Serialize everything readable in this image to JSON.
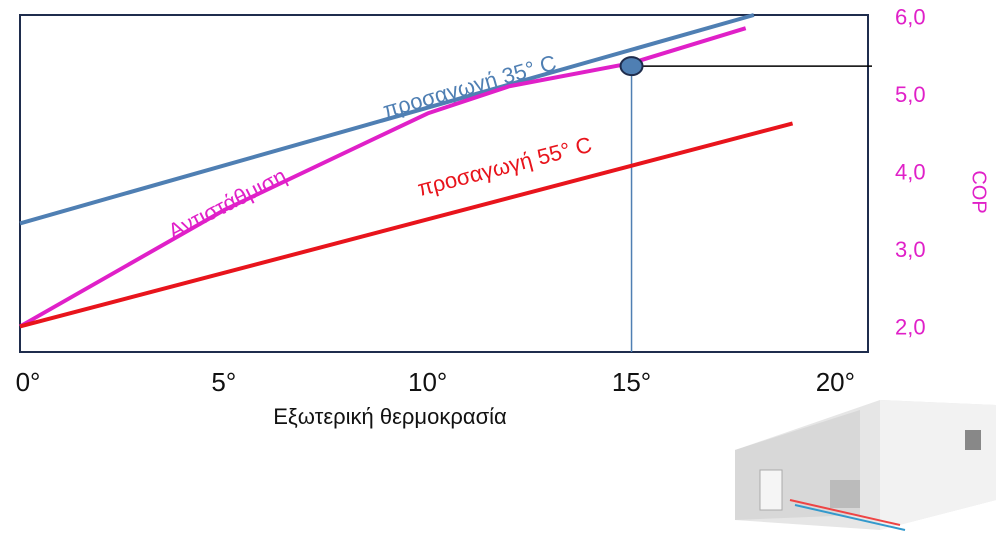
{
  "chart_data": {
    "type": "line",
    "x_label": "Εξωτερική θερμοκρασία",
    "y_label": "COP",
    "xlim": [
      0,
      20.8
    ],
    "ylim": [
      1.7,
      6.05
    ],
    "xticks": [
      {
        "value": 0,
        "label": "0°"
      },
      {
        "value": 5,
        "label": "5°"
      },
      {
        "value": 10,
        "label": "10°"
      },
      {
        "value": 15,
        "label": "15°"
      },
      {
        "value": 20,
        "label": "20°"
      }
    ],
    "yticks": [
      {
        "value": 2,
        "label": "2,0"
      },
      {
        "value": 3,
        "label": "3,0"
      },
      {
        "value": 4,
        "label": "4,0"
      },
      {
        "value": 5,
        "label": "5,0"
      },
      {
        "value": 6,
        "label": "6,0"
      }
    ],
    "tick_color": "#e020c8",
    "series": [
      {
        "name": "προσαγωγή 35°  C",
        "color": "#4f7fb3",
        "x": [
          0,
          18
        ],
        "values": [
          3.36,
          6.05
        ]
      },
      {
        "name": "Αντιστάθμιση",
        "color": "#e020c8",
        "x": [
          0,
          5,
          10,
          12,
          15,
          17.8
        ],
        "values": [
          2.03,
          3.53,
          4.78,
          5.13,
          5.43,
          5.88
        ]
      },
      {
        "name": "προσαγωγή 55°  C",
        "color": "#e8141c",
        "x": [
          0,
          18.95
        ],
        "values": [
          2.03,
          4.65
        ]
      }
    ],
    "marker": {
      "x": 15,
      "y": 5.39
    }
  }
}
